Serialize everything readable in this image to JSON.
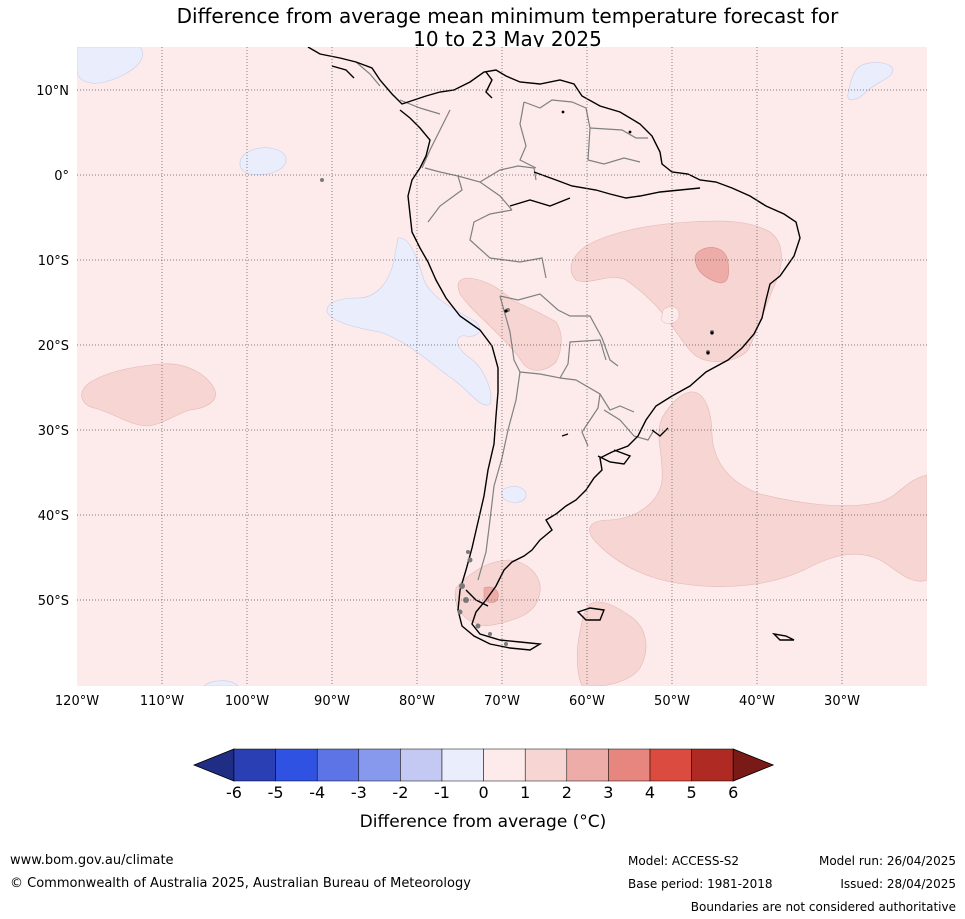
{
  "title_line1": "Difference from average mean minimum temperature forecast for",
  "title_line2": "10 to 23 May 2025",
  "lon_labels": [
    "120°W",
    "110°W",
    "100°W",
    "90°W",
    "80°W",
    "70°W",
    "60°W",
    "50°W",
    "40°W",
    "30°W"
  ],
  "lat_labels": [
    "10°N",
    "0°",
    "10°S",
    "20°S",
    "30°S",
    "40°S",
    "50°S"
  ],
  "colorbar": {
    "ticks": [
      "-6",
      "-5",
      "-4",
      "-3",
      "-2",
      "-1",
      "0",
      "1",
      "2",
      "3",
      "4",
      "5",
      "6"
    ],
    "label": "Difference from average (°C)",
    "colors": [
      "#1f2d85",
      "#2a3fb4",
      "#3052e2",
      "#5d74e6",
      "#8799ec",
      "#c3c9f3",
      "#eaedfb",
      "#fcebea",
      "#f6d5d3",
      "#edaca8",
      "#e7867f",
      "#db4b3f",
      "#ae2a22",
      "#7a1a16"
    ]
  },
  "legend_colors": {
    "near_zero": "#fcebea",
    "warm1": "#f6d5d3",
    "warm2": "#edaca8",
    "cool1": "#eaedfb"
  },
  "footer": {
    "website": "www.bom.gov.au/climate",
    "copyright": "© Commonwealth of Australia 2025, Australian Bureau of Meteorology",
    "model": "Model: ACCESS-S2",
    "base_period": "Base period: 1981-2018",
    "model_run": "Model run: 26/04/2025",
    "issued": "Issued: 28/04/2025",
    "disclaimer": "Boundaries are not considered authoritative"
  }
}
